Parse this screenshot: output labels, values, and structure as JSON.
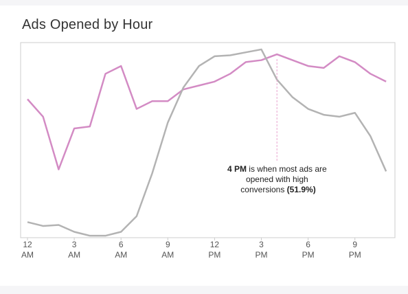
{
  "chart_data": {
    "type": "line",
    "title": "Ads Opened by Hour",
    "x": [
      0,
      1,
      2,
      3,
      4,
      5,
      6,
      7,
      8,
      9,
      10,
      11,
      12,
      13,
      14,
      15,
      16,
      17,
      18,
      19,
      20,
      21,
      22,
      23
    ],
    "xticks": [
      {
        "x": 0,
        "line1": "12",
        "line2": "AM"
      },
      {
        "x": 3,
        "line1": "3",
        "line2": "AM"
      },
      {
        "x": 6,
        "line1": "6",
        "line2": "AM"
      },
      {
        "x": 9,
        "line1": "9",
        "line2": "AM"
      },
      {
        "x": 12,
        "line1": "12",
        "line2": "PM"
      },
      {
        "x": 15,
        "line1": "3",
        "line2": "PM"
      },
      {
        "x": 18,
        "line1": "6",
        "line2": "PM"
      },
      {
        "x": 21,
        "line1": "9",
        "line2": "PM"
      }
    ],
    "ylim": [
      0,
      100
    ],
    "series": [
      {
        "color": "#d38bc4",
        "values": [
          71,
          62,
          35,
          56,
          57,
          84,
          88,
          66,
          70,
          70,
          76,
          78,
          80,
          84,
          90,
          91,
          94,
          91,
          88,
          87,
          93,
          90,
          84,
          80
        ]
      },
      {
        "color": "#b3b3b3",
        "values": [
          8,
          6,
          6.5,
          3,
          1,
          1,
          3,
          11,
          33,
          59,
          77,
          88,
          93,
          93.5,
          95,
          96.5,
          81,
          72,
          66,
          63,
          62,
          64,
          52,
          34
        ]
      }
    ],
    "annotation": {
      "x": 16,
      "color": "#e9a3cf",
      "line1_bold": "4 PM",
      "line1_rest": " is when most ads are",
      "line2": "opened with high",
      "line3_pre": "conversions ",
      "line3_bold": "(51.9%)"
    }
  }
}
